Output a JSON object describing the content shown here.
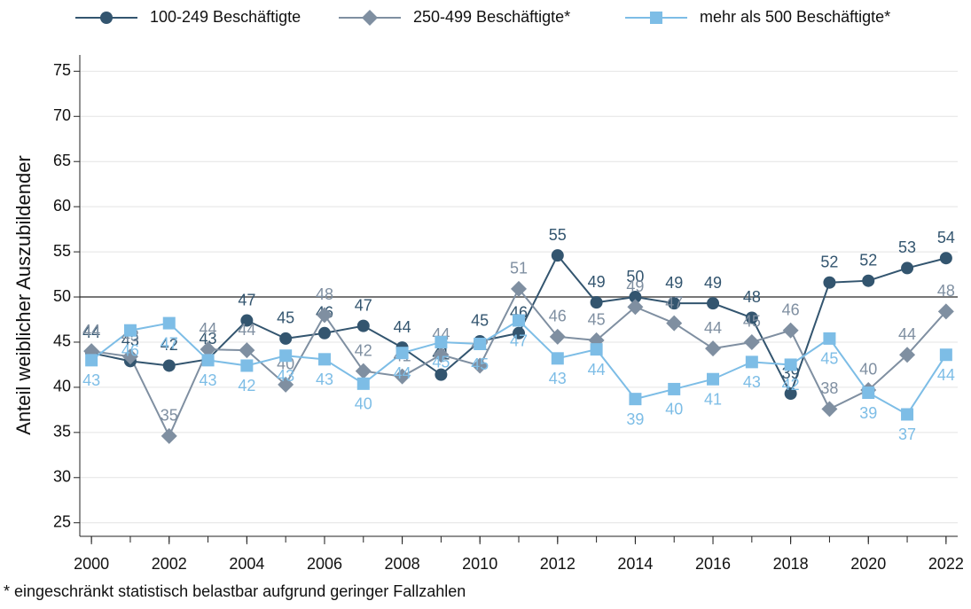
{
  "chart_data": {
    "type": "line",
    "y_label": "Anteil weiblicher Auszubildender",
    "footnote": "* eingeschränkt statistisch belastbar aufgrund geringer Fallzahlen",
    "x": [
      2000,
      2001,
      2002,
      2003,
      2004,
      2005,
      2006,
      2007,
      2008,
      2009,
      2010,
      2011,
      2012,
      2013,
      2014,
      2015,
      2016,
      2017,
      2018,
      2019,
      2020,
      2021,
      2022
    ],
    "xlim": [
      1999.7,
      2022.3
    ],
    "xticks": [
      2000,
      2002,
      2004,
      2006,
      2008,
      2010,
      2012,
      2014,
      2016,
      2018,
      2020,
      2022
    ],
    "ylim": [
      23.5,
      76.8
    ],
    "yticks": [
      25,
      30,
      35,
      40,
      45,
      50,
      55,
      60,
      65,
      70,
      75
    ],
    "grid": true,
    "reference_line": 50,
    "series": [
      {
        "name": "100-249 Beschäftigte",
        "color": "#33556f",
        "marker": "circle",
        "values": [
          43.8,
          42.9,
          42.4,
          43.1,
          47.4,
          45.4,
          46.0,
          46.8,
          44.4,
          41.4,
          45.1,
          46.0,
          54.6,
          49.4,
          50.0,
          49.3,
          49.3,
          47.7,
          39.3,
          51.6,
          51.8,
          53.2,
          54.3
        ],
        "value_labels": [
          "44",
          "43",
          "42",
          "43",
          "47",
          "45",
          "46",
          "47",
          "44",
          "41",
          "45",
          "46",
          "55",
          "49",
          "50",
          "49",
          "49",
          "48",
          "39",
          "52",
          "52",
          "53",
          "54"
        ]
      },
      {
        "name": "250-499 Beschäftigte*",
        "color": "#7f8fa1",
        "marker": "diamond",
        "values": [
          44.0,
          43.4,
          34.6,
          44.2,
          44.1,
          40.3,
          48.0,
          41.8,
          41.2,
          43.6,
          42.4,
          50.9,
          45.6,
          45.2,
          48.9,
          47.1,
          44.3,
          45.0,
          46.3,
          37.6,
          39.7,
          43.6,
          48.4
        ],
        "value_labels": [
          "44",
          "43",
          "35",
          "44",
          "44",
          "40",
          "48",
          "42",
          "41",
          "44",
          "42",
          "51",
          "46",
          "45",
          "49",
          "47",
          "44",
          "45",
          "46",
          "38",
          "40",
          "44",
          "48"
        ]
      },
      {
        "name": "mehr als 500 Beschäftigte*",
        "color": "#7dbde6",
        "marker": "square",
        "values": [
          43.0,
          46.3,
          47.1,
          43.0,
          42.4,
          43.5,
          43.1,
          40.4,
          43.8,
          45.0,
          44.8,
          47.4,
          43.2,
          44.2,
          38.7,
          39.8,
          40.9,
          42.8,
          42.5,
          45.4,
          39.4,
          37.0,
          43.6
        ],
        "value_labels": [
          "43",
          "46",
          "47",
          "43",
          "42",
          "43",
          "43",
          "40",
          "44",
          "45",
          "45",
          "47",
          "43",
          "44",
          "39",
          "40",
          "41",
          "43",
          "42",
          "45",
          "39",
          "37",
          "44"
        ]
      }
    ]
  }
}
